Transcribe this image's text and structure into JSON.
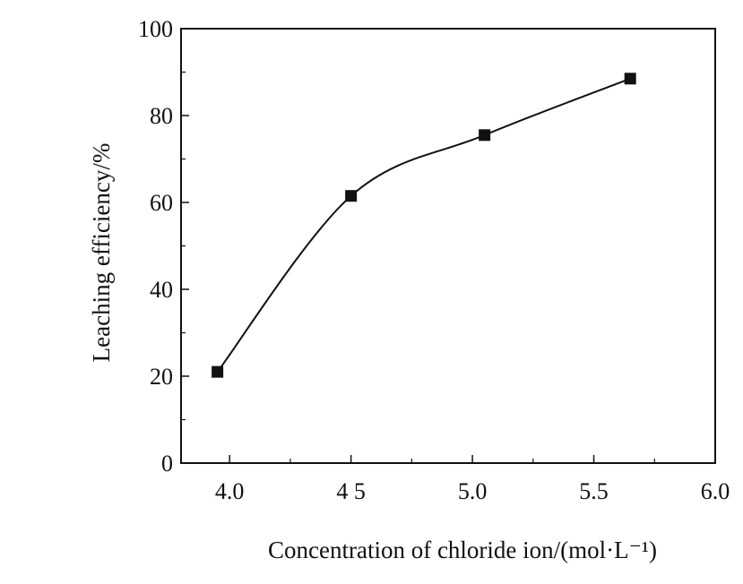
{
  "chart_data": {
    "type": "line",
    "title": "",
    "xlabel": "Concentration of chloride ion/(mol·L⁻¹)",
    "ylabel": "Leaching efficiency/%",
    "xlim": [
      3.8,
      6.0
    ],
    "ylim": [
      0,
      100
    ],
    "x_ticks": [
      4.0,
      4.5,
      5.0,
      5.5,
      6.0
    ],
    "x_tick_labels": [
      "4.0",
      "4 5",
      "5.0",
      "5.5",
      "6.0"
    ],
    "y_ticks": [
      0,
      20,
      40,
      60,
      80,
      100
    ],
    "y_tick_labels": [
      "0",
      "20",
      "40",
      "60",
      "80",
      "100"
    ],
    "grid": false,
    "legend": "none",
    "marker": "square",
    "line_style": "smooth",
    "color": "#111111",
    "series": [
      {
        "x": [
          3.95,
          4.5,
          5.05,
          5.65
        ],
        "y": [
          21,
          61.5,
          75.5,
          88.5
        ]
      }
    ]
  }
}
